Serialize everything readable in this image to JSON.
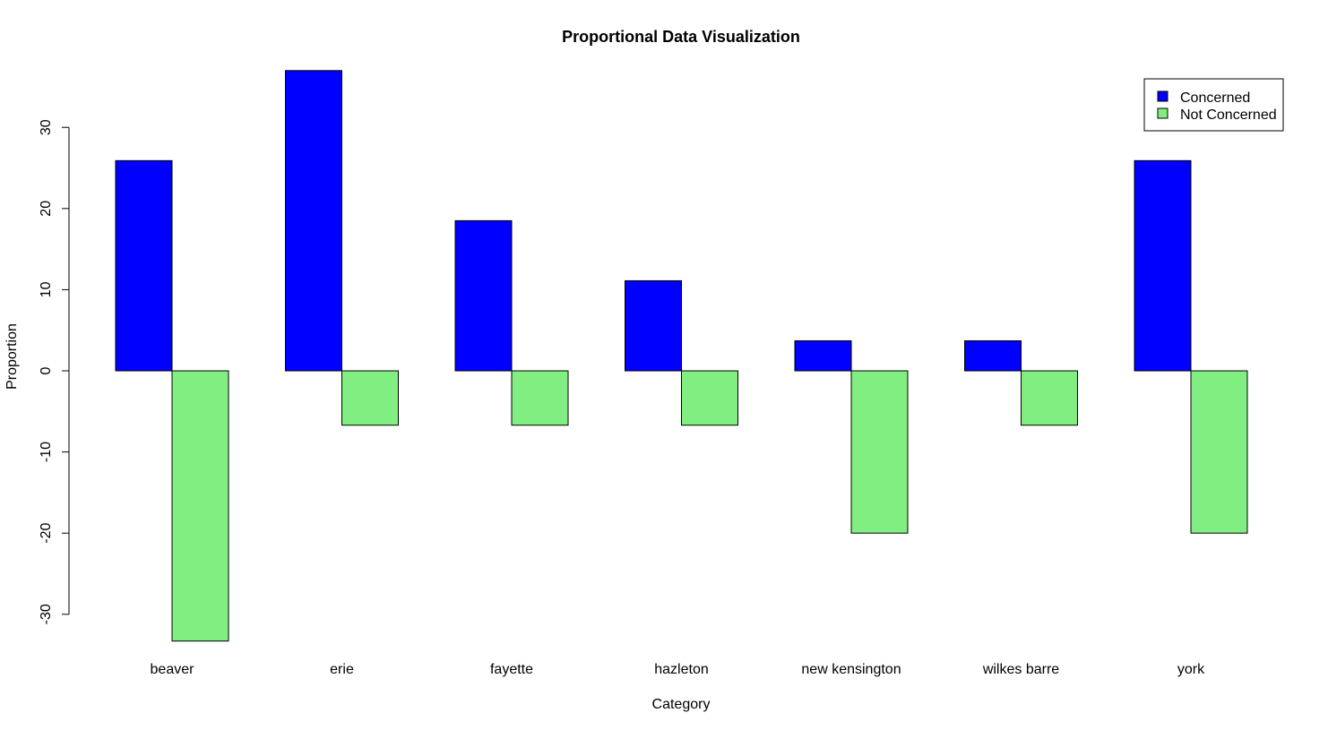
{
  "chart_data": {
    "type": "bar",
    "title": "Proportional Data Visualization",
    "xlabel": "Category",
    "ylabel": "Proportion",
    "categories": [
      "beaver",
      "erie",
      "fayette",
      "hazleton",
      "new kensington",
      "wilkes barre",
      "york"
    ],
    "series": [
      {
        "name": "Concerned",
        "color": "#0000ff",
        "values": [
          25.9,
          37.0,
          18.5,
          11.1,
          3.7,
          3.7,
          25.9
        ]
      },
      {
        "name": "Not Concerned",
        "color": "#80ee80",
        "values": [
          -33.3,
          -6.7,
          -6.7,
          -6.7,
          -20.0,
          -6.7,
          -20.0
        ]
      }
    ],
    "yticks": [
      -30,
      -20,
      -10,
      0,
      10,
      20,
      30
    ],
    "ylim": [
      -33.3,
      37.0
    ],
    "grid": false,
    "legend_position": "top-right"
  }
}
